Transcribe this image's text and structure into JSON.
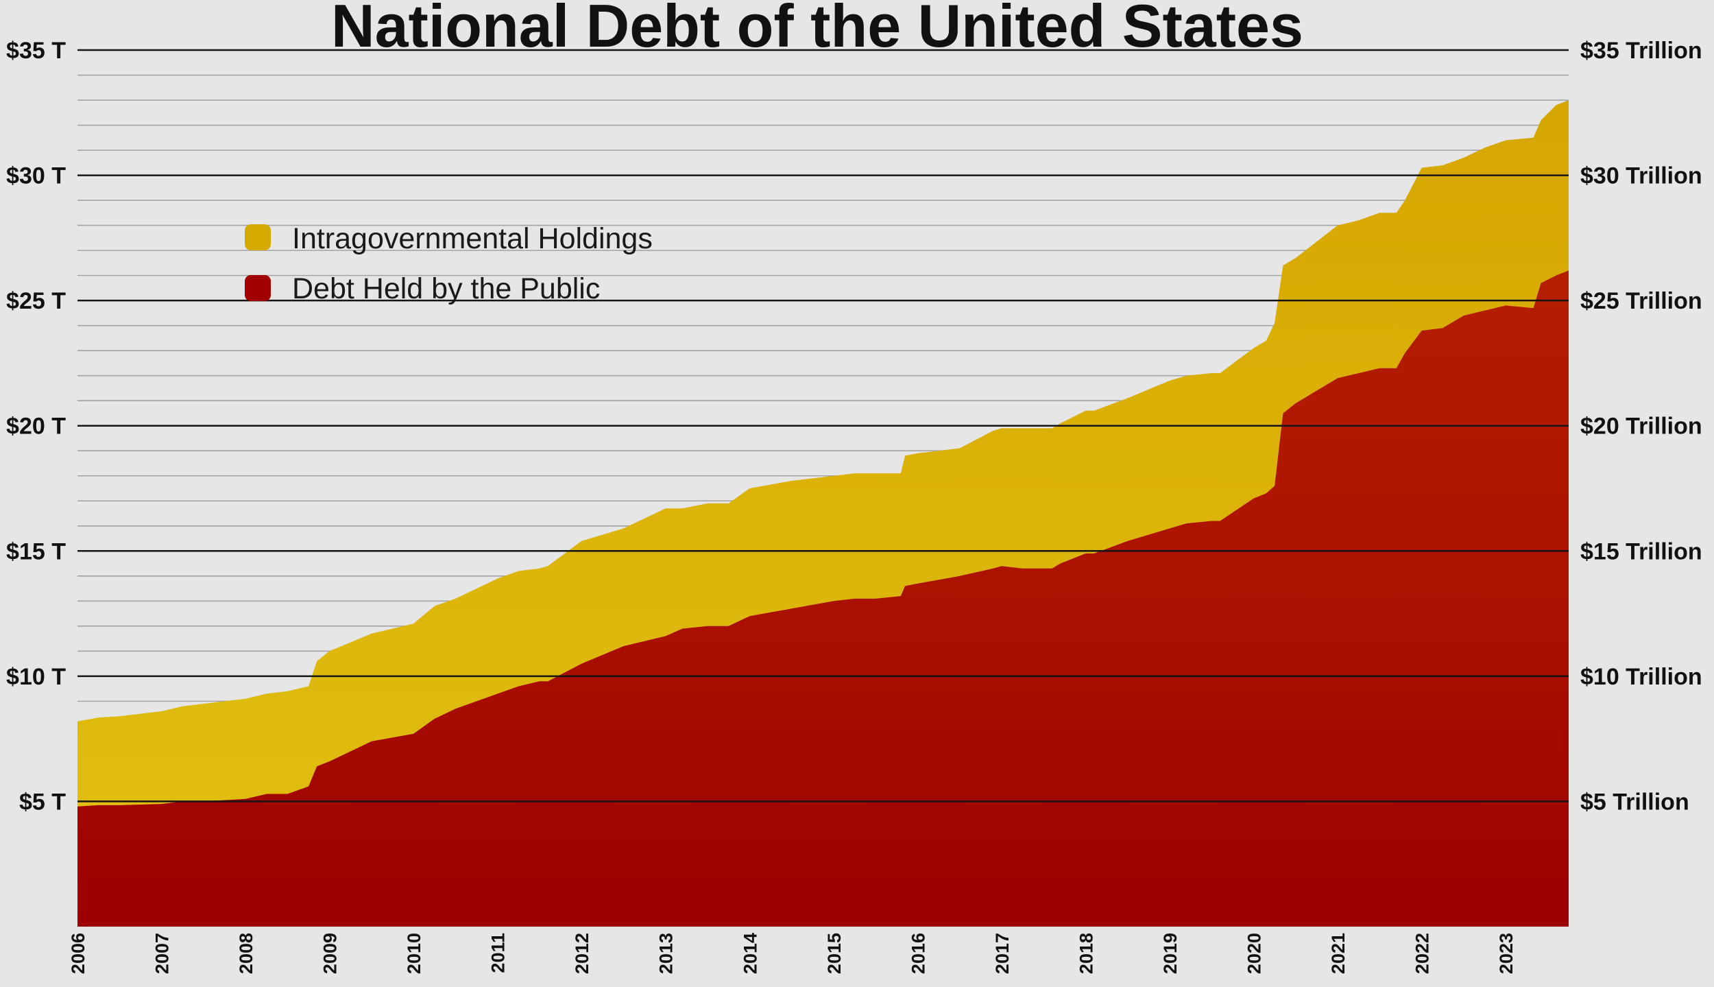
{
  "chart_data": {
    "type": "area",
    "stacked": true,
    "title": "National Debt of the United States",
    "xlabel": "",
    "ylabel": "",
    "x_tick_labels": [
      "2006",
      "2007",
      "2008",
      "2009",
      "2010",
      "2011",
      "2012",
      "2013",
      "2014",
      "2015",
      "2016",
      "2017",
      "2018",
      "2019",
      "2020",
      "2021",
      "2022",
      "2023"
    ],
    "y_tick_labels_left": [
      "$5 T",
      "$10 T",
      "$15 T",
      "$20 T",
      "$25 T",
      "$30 T",
      "$35 T"
    ],
    "y_tick_labels_right": [
      "$5 Trillion",
      "$10 Trillion",
      "$15 Trillion",
      "$20 Trillion",
      "$25 Trillion",
      "$30 Trillion",
      "$35 Trillion"
    ],
    "y_tick_values": [
      5,
      10,
      15,
      20,
      25,
      30,
      35
    ],
    "ylim": [
      0,
      35
    ],
    "xlim": [
      2006.0,
      2023.75
    ],
    "units": "trillions of US dollars",
    "grid": true,
    "legend_position": "top-left",
    "x": [
      2006.0,
      2006.25,
      2006.5,
      2007.0,
      2007.25,
      2007.5,
      2008.0,
      2008.25,
      2008.5,
      2008.75,
      2008.85,
      2009.0,
      2009.5,
      2010.0,
      2010.25,
      2010.5,
      2011.0,
      2011.25,
      2011.5,
      2011.6,
      2012.0,
      2012.5,
      2013.0,
      2013.2,
      2013.5,
      2013.75,
      2014.0,
      2014.5,
      2015.0,
      2015.25,
      2015.5,
      2015.8,
      2015.85,
      2016.0,
      2016.5,
      2016.9,
      2017.0,
      2017.25,
      2017.6,
      2017.7,
      2018.0,
      2018.1,
      2018.5,
      2019.0,
      2019.2,
      2019.5,
      2019.6,
      2020.0,
      2020.15,
      2020.25,
      2020.35,
      2020.5,
      2021.0,
      2021.25,
      2021.5,
      2021.7,
      2021.8,
      2022.0,
      2022.25,
      2022.5,
      2022.75,
      2023.0,
      2023.33,
      2023.42,
      2023.6,
      2023.75
    ],
    "series": [
      {
        "name": "Debt Held by the Public",
        "color": "#a00000",
        "values": [
          4.8,
          4.85,
          4.85,
          4.9,
          5.0,
          5.0,
          5.1,
          5.3,
          5.3,
          5.6,
          6.4,
          6.6,
          7.4,
          7.7,
          8.3,
          8.7,
          9.3,
          9.6,
          9.8,
          9.8,
          10.5,
          11.2,
          11.6,
          11.9,
          12.0,
          12.0,
          12.4,
          12.7,
          13.0,
          13.1,
          13.1,
          13.2,
          13.6,
          13.7,
          14.0,
          14.3,
          14.4,
          14.3,
          14.3,
          14.5,
          14.9,
          14.9,
          15.4,
          15.9,
          16.1,
          16.2,
          16.2,
          17.1,
          17.3,
          17.6,
          20.5,
          20.9,
          21.9,
          22.1,
          22.3,
          22.3,
          22.9,
          23.8,
          23.9,
          24.4,
          24.6,
          24.8,
          24.7,
          25.7,
          26.0,
          26.2
        ]
      },
      {
        "name": "Intragovernmental Holdings",
        "color": "#d4a900",
        "values": [
          3.4,
          3.5,
          3.55,
          3.7,
          3.8,
          3.9,
          4.0,
          4.0,
          4.1,
          4.0,
          4.2,
          4.4,
          4.3,
          4.4,
          4.5,
          4.4,
          4.6,
          4.6,
          4.5,
          4.6,
          4.9,
          4.7,
          5.1,
          4.8,
          4.9,
          4.9,
          5.1,
          5.1,
          5.0,
          5.0,
          5.0,
          4.9,
          5.2,
          5.2,
          5.1,
          5.5,
          5.5,
          5.6,
          5.6,
          5.6,
          5.7,
          5.7,
          5.7,
          5.9,
          5.9,
          5.9,
          5.9,
          6.0,
          6.1,
          6.5,
          5.9,
          5.8,
          6.1,
          6.1,
          6.2,
          6.2,
          6.1,
          6.5,
          6.5,
          6.3,
          6.5,
          6.6,
          6.8,
          6.5,
          6.8,
          6.8
        ]
      }
    ]
  }
}
